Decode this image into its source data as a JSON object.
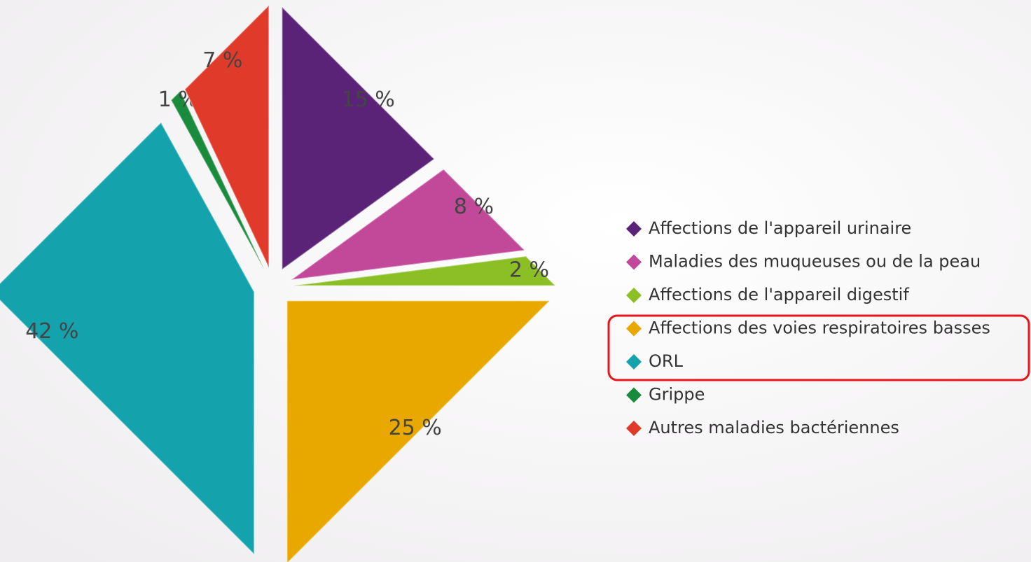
{
  "chart_data": {
    "type": "pie",
    "categories": [
      "Affections de l'appareil urinaire",
      "Maladies des muqueuses ou de la peau",
      "Affections de l'appareil digestif",
      "Affections des voies respiratoires basses",
      "ORL",
      "Grippe",
      "Autres maladies bactériennes"
    ],
    "values": [
      15,
      8,
      2,
      25,
      42,
      1,
      7
    ],
    "value_labels": [
      "15 %",
      "8 %",
      "2 %",
      "25 %",
      "42 %",
      "1 %",
      "7 %"
    ],
    "colors": [
      "#5b2378",
      "#c2489a",
      "#8cbf26",
      "#e8a800",
      "#14a3ad",
      "#1a8a3c",
      "#e03a2a"
    ]
  }
}
